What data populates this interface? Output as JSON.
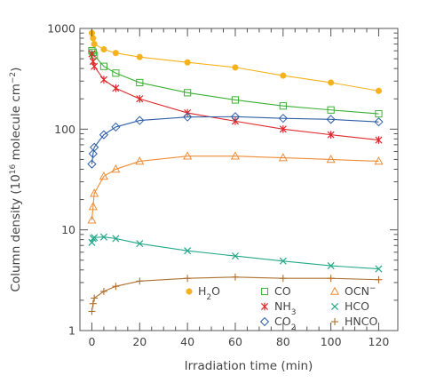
{
  "chart_data": {
    "type": "scatter",
    "title": "",
    "xlabel": "Irradiation time (min)",
    "ylabel": "Column density (10^16 molecule cm^-2)",
    "xlim": [
      -5,
      128
    ],
    "ylim": [
      1,
      1000
    ],
    "yscale": "log",
    "grid": false,
    "legend_position": "bottom-right",
    "x_ticks": [
      "0",
      "20",
      "40",
      "60",
      "80",
      "100",
      "120"
    ],
    "y_ticks": [
      "1",
      "10",
      "100",
      "1000"
    ],
    "series": [
      {
        "name": "H2O",
        "marker": "filled-circle",
        "color": "#f5b21c",
        "x": [
          0,
          0.5,
          1,
          5,
          10,
          20,
          40,
          60,
          80,
          100,
          120
        ],
        "y": [
          900,
          800,
          700,
          620,
          570,
          520,
          460,
          410,
          340,
          290,
          240
        ]
      },
      {
        "name": "CO",
        "marker": "open-square",
        "color": "#3cb034",
        "x": [
          0,
          0.5,
          1,
          5,
          10,
          20,
          40,
          60,
          80,
          100,
          120
        ],
        "y": [
          600,
          580,
          540,
          420,
          360,
          290,
          230,
          195,
          170,
          155,
          142
        ]
      },
      {
        "name": "NH3",
        "marker": "asterisk",
        "color": "#e0282c",
        "x": [
          0,
          0.5,
          1,
          5,
          10,
          20,
          40,
          60,
          80,
          100,
          120
        ],
        "y": [
          560,
          470,
          420,
          310,
          255,
          200,
          145,
          120,
          100,
          88,
          78
        ]
      },
      {
        "name": "CO2",
        "marker": "open-diamond",
        "color": "#2f5fa8",
        "x": [
          0,
          0.5,
          1,
          5,
          10,
          20,
          40,
          60,
          80,
          100,
          120
        ],
        "y": [
          45,
          57,
          66,
          88,
          105,
          122,
          132,
          133,
          128,
          125,
          118
        ]
      },
      {
        "name": "OCN−",
        "marker": "open-triangle",
        "color": "#f08c36",
        "x": [
          0,
          0.5,
          1,
          5,
          10,
          20,
          40,
          60,
          80,
          100,
          120
        ],
        "y": [
          12.5,
          17,
          23,
          34,
          40,
          48,
          54,
          54,
          52,
          50,
          48
        ]
      },
      {
        "name": "HCO",
        "marker": "x-cross",
        "color": "#25a88a",
        "x": [
          0,
          0.5,
          1,
          5,
          10,
          20,
          40,
          60,
          80,
          100,
          120
        ],
        "y": [
          7.5,
          8.2,
          8.4,
          8.5,
          8.2,
          7.3,
          6.2,
          5.5,
          4.9,
          4.4,
          4.1
        ]
      },
      {
        "name": "HNCO",
        "marker": "plus",
        "color": "#b07030",
        "x": [
          0,
          0.5,
          1,
          5,
          10,
          20,
          40,
          60,
          80,
          100,
          120
        ],
        "y": [
          1.55,
          1.85,
          2.1,
          2.45,
          2.75,
          3.1,
          3.3,
          3.4,
          3.3,
          3.3,
          3.2
        ]
      }
    ]
  },
  "legend": {
    "h2o": {
      "base": "H",
      "sub": "2",
      "tail": "O"
    },
    "co": {
      "base": "CO"
    },
    "ocn": {
      "base": "OCN",
      "sup": "−"
    },
    "nh3": {
      "base": "NH",
      "sub": "3"
    },
    "hco": {
      "base": "HCO"
    },
    "co2": {
      "base": "CO",
      "sub": "2"
    },
    "hnco": {
      "base": "HNCO"
    }
  },
  "axis": {
    "xlabel": "Irradiation time (min)",
    "ylabel_prefix": "Column density (10",
    "ylabel_exp": "16",
    "ylabel_mid": " molecule cm",
    "ylabel_exp2": "−2",
    "ylabel_suffix": ")"
  }
}
